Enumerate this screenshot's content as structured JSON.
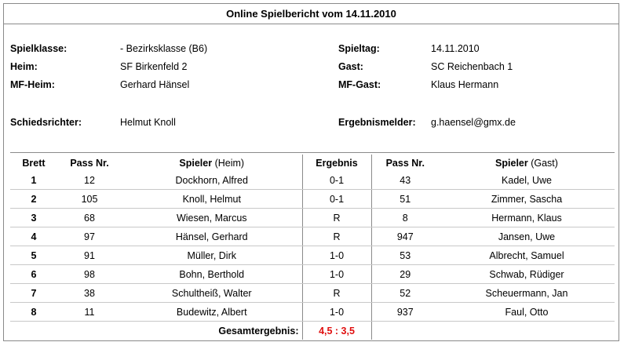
{
  "title": "Online Spielbericht vom 14.11.2010",
  "info": {
    "spielklasse_label": "Spielklasse:",
    "spielklasse_value": "- Bezirksklasse (B6)",
    "spieltag_label": "Spieltag:",
    "spieltag_value": "14.11.2010",
    "heim_label": "Heim:",
    "heim_value": "SF Birkenfeld 2",
    "gast_label": "Gast:",
    "gast_value": "SC Reichenbach 1",
    "mf_heim_label": "MF-Heim:",
    "mf_heim_value": "Gerhard Hänsel",
    "mf_gast_label": "MF-Gast:",
    "mf_gast_value": "Klaus Hermann",
    "schiedsrichter_label": "Schiedsrichter:",
    "schiedsrichter_value": "Helmut Knoll",
    "ergebnismelder_label": "Ergebnismelder:",
    "ergebnismelder_value": "g.haensel@gmx.de"
  },
  "table": {
    "headers": {
      "brett": "Brett",
      "pass_heim": "Pass Nr.",
      "spieler_heim": "Spieler",
      "spieler_heim_suffix": "(Heim)",
      "ergebnis": "Ergebnis",
      "pass_gast": "Pass Nr.",
      "spieler_gast": "Spieler",
      "spieler_gast_suffix": "(Gast)"
    },
    "rows": [
      {
        "brett": "1",
        "pass_heim": "12",
        "spieler_heim": "Dockhorn, Alfred",
        "ergebnis": "0-1",
        "pass_gast": "43",
        "spieler_gast": "Kadel, Uwe"
      },
      {
        "brett": "2",
        "pass_heim": "105",
        "spieler_heim": "Knoll, Helmut",
        "ergebnis": "0-1",
        "pass_gast": "51",
        "spieler_gast": "Zimmer, Sascha"
      },
      {
        "brett": "3",
        "pass_heim": "68",
        "spieler_heim": "Wiesen, Marcus",
        "ergebnis": "R",
        "pass_gast": "8",
        "spieler_gast": "Hermann, Klaus"
      },
      {
        "brett": "4",
        "pass_heim": "97",
        "spieler_heim": "Hänsel, Gerhard",
        "ergebnis": "R",
        "pass_gast": "947",
        "spieler_gast": "Jansen, Uwe"
      },
      {
        "brett": "5",
        "pass_heim": "91",
        "spieler_heim": "Müller, Dirk",
        "ergebnis": "1-0",
        "pass_gast": "53",
        "spieler_gast": "Albrecht, Samuel"
      },
      {
        "brett": "6",
        "pass_heim": "98",
        "spieler_heim": "Bohn, Berthold",
        "ergebnis": "1-0",
        "pass_gast": "29",
        "spieler_gast": "Schwab, Rüdiger"
      },
      {
        "brett": "7",
        "pass_heim": "38",
        "spieler_heim": "Schultheiß, Walter",
        "ergebnis": "R",
        "pass_gast": "52",
        "spieler_gast": "Scheuermann, Jan"
      },
      {
        "brett": "8",
        "pass_heim": "11",
        "spieler_heim": "Budewitz, Albert",
        "ergebnis": "1-0",
        "pass_gast": "937",
        "spieler_gast": "Faul, Otto"
      }
    ],
    "total_label": "Gesamtergebnis:",
    "total_value": "4,5 : 3,5"
  },
  "colors": {
    "total_value": "#e01010",
    "border": "#8a8a8a"
  }
}
